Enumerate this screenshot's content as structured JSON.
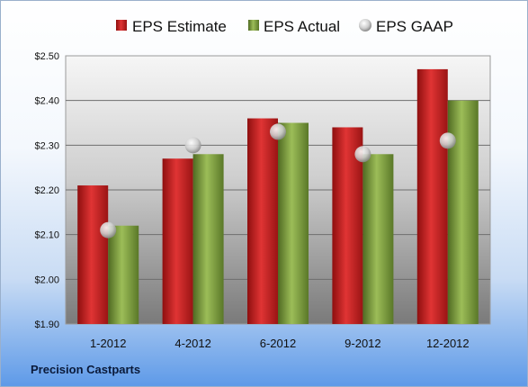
{
  "company": "Precision Castparts",
  "chart_data": {
    "type": "bar",
    "categories": [
      "1-2012",
      "4-2012",
      "6-2012",
      "9-2012",
      "12-2012"
    ],
    "series": [
      {
        "name": "EPS Estimate",
        "kind": "bar",
        "color": "#cc1f1f",
        "values": [
          2.21,
          2.27,
          2.36,
          2.34,
          2.47
        ]
      },
      {
        "name": "EPS Actual",
        "kind": "bar",
        "color": "#7a9a3a",
        "values": [
          2.12,
          2.28,
          2.35,
          2.28,
          2.4
        ]
      },
      {
        "name": "EPS GAAP",
        "kind": "marker",
        "color": "#c8c8c8",
        "values": [
          2.11,
          2.3,
          2.33,
          2.28,
          2.31
        ]
      }
    ],
    "yticks": [
      "$1.90",
      "$2.00",
      "$2.10",
      "$2.20",
      "$2.30",
      "$2.40",
      "$2.50"
    ],
    "ylim": [
      1.9,
      2.5
    ],
    "grid": true,
    "legend": "top"
  }
}
